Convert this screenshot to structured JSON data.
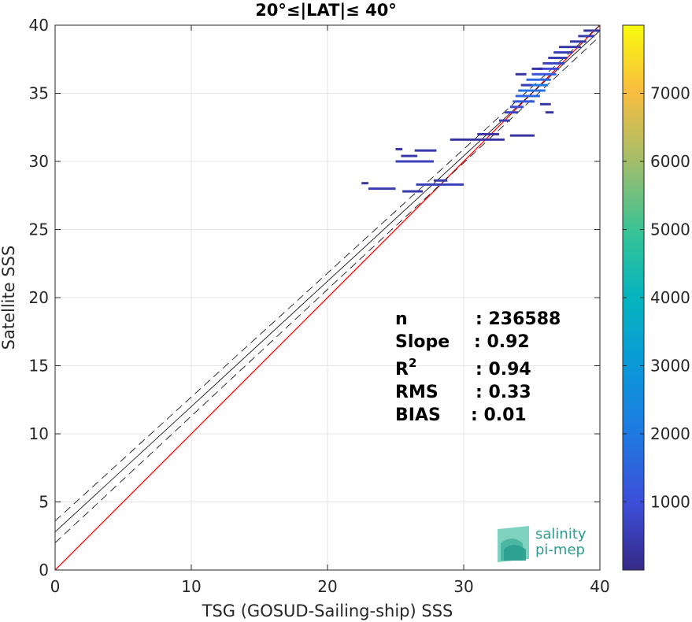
{
  "chart_data": {
    "type": "heatmap",
    "title": "20°≤|LAT|≤ 40°",
    "xlabel": "TSG (GOSUD-Sailing-ship) SSS",
    "ylabel": "Satellite SSS",
    "xlim": [
      0,
      40
    ],
    "ylim": [
      0,
      40
    ],
    "xticks": [
      0,
      10,
      20,
      30,
      40
    ],
    "yticks": [
      0,
      5,
      10,
      15,
      20,
      25,
      30,
      35,
      40
    ],
    "grid": true,
    "colorbar": {
      "colormap": "parula",
      "range": [
        0,
        8000
      ],
      "ticks": [
        1000,
        2000,
        3000,
        4000,
        5000,
        6000,
        7000
      ]
    },
    "reference_lines": [
      {
        "name": "1:1 line",
        "color": "#ff0000",
        "intercept": 0,
        "slope": 1
      },
      {
        "name": "regression fit",
        "color": "#000000",
        "intercept": 2.8,
        "slope": 0.92
      },
      {
        "name": "fit + RMS",
        "color": "#000000",
        "style": "dashed",
        "intercept": 3.6,
        "slope": 0.91
      },
      {
        "name": "fit - RMS",
        "color": "#000000",
        "style": "dashed",
        "intercept": 2.0,
        "slope": 0.93
      }
    ],
    "density_segments": [
      {
        "x0": 22.5,
        "x1": 23.0,
        "y": 28.4,
        "count": 300
      },
      {
        "x0": 23.0,
        "x1": 25.0,
        "y": 28.0,
        "count": 500
      },
      {
        "x0": 25.5,
        "x1": 27.0,
        "y": 27.8,
        "count": 400
      },
      {
        "x0": 25.0,
        "x1": 27.8,
        "y": 30.0,
        "count": 600
      },
      {
        "x0": 25.4,
        "x1": 26.6,
        "y": 30.4,
        "count": 400
      },
      {
        "x0": 26.4,
        "x1": 28.0,
        "y": 30.8,
        "count": 400
      },
      {
        "x0": 25.0,
        "x1": 25.5,
        "y": 30.9,
        "count": 300
      },
      {
        "x0": 26.5,
        "x1": 30.0,
        "y": 28.3,
        "count": 600
      },
      {
        "x0": 27.8,
        "x1": 28.8,
        "y": 28.6,
        "count": 400
      },
      {
        "x0": 29.0,
        "x1": 33.0,
        "y": 31.6,
        "count": 300
      },
      {
        "x0": 31.0,
        "x1": 32.6,
        "y": 32.0,
        "count": 300
      },
      {
        "x0": 33.4,
        "x1": 35.2,
        "y": 31.9,
        "count": 300
      },
      {
        "x0": 32.6,
        "x1": 33.4,
        "y": 33.0,
        "count": 500
      },
      {
        "x0": 33.0,
        "x1": 34.0,
        "y": 33.6,
        "count": 700
      },
      {
        "x0": 33.4,
        "x1": 34.4,
        "y": 34.0,
        "count": 900
      },
      {
        "x0": 33.6,
        "x1": 35.2,
        "y": 34.4,
        "count": 1200
      },
      {
        "x0": 33.8,
        "x1": 35.6,
        "y": 34.8,
        "count": 1600
      },
      {
        "x0": 34.0,
        "x1": 36.0,
        "y": 35.2,
        "count": 1800
      },
      {
        "x0": 34.4,
        "x1": 36.2,
        "y": 35.6,
        "count": 2000
      },
      {
        "x0": 34.6,
        "x1": 36.4,
        "y": 36.0,
        "count": 1600
      },
      {
        "x0": 35.0,
        "x1": 36.8,
        "y": 36.4,
        "count": 1200
      },
      {
        "x0": 35.4,
        "x1": 37.0,
        "y": 36.8,
        "count": 900
      },
      {
        "x0": 35.8,
        "x1": 37.4,
        "y": 37.2,
        "count": 700
      },
      {
        "x0": 36.2,
        "x1": 37.6,
        "y": 37.6,
        "count": 500
      },
      {
        "x0": 36.6,
        "x1": 38.0,
        "y": 38.0,
        "count": 500
      },
      {
        "x0": 37.0,
        "x1": 38.6,
        "y": 38.4,
        "count": 400
      },
      {
        "x0": 37.8,
        "x1": 39.0,
        "y": 38.8,
        "count": 400
      },
      {
        "x0": 38.4,
        "x1": 39.6,
        "y": 39.2,
        "count": 500
      },
      {
        "x0": 38.8,
        "x1": 40.0,
        "y": 39.6,
        "count": 400
      },
      {
        "x0": 34.2,
        "x1": 35.0,
        "y": 35.6,
        "count": 600
      },
      {
        "x0": 35.6,
        "x1": 36.4,
        "y": 34.2,
        "count": 400
      },
      {
        "x0": 33.8,
        "x1": 34.6,
        "y": 36.4,
        "count": 300
      },
      {
        "x0": 36.0,
        "x1": 36.6,
        "y": 33.6,
        "count": 300
      },
      {
        "x0": 35.0,
        "x1": 35.8,
        "y": 36.8,
        "count": 300
      }
    ]
  },
  "stats": [
    {
      "key": "n",
      "value": ": 236588"
    },
    {
      "key": "Slope",
      "value": ": 0.92"
    },
    {
      "key": "R",
      "sup": "2",
      "value": ": 0.94"
    },
    {
      "key": "RMS",
      "value": ": 0.33"
    },
    {
      "key": "BIAS",
      "value": ": 0.01"
    }
  ],
  "logo": {
    "line1": "salinity",
    "line2": "pi-mep"
  }
}
